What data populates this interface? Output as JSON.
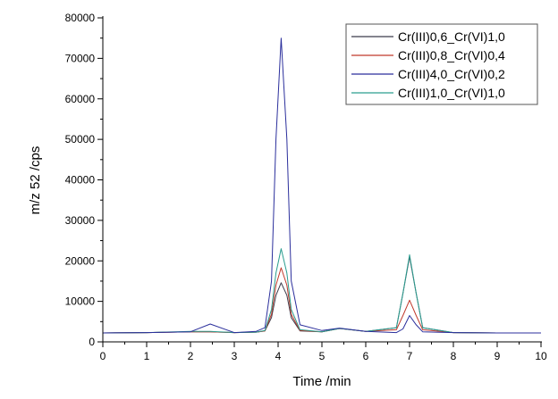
{
  "chart_data": {
    "type": "line",
    "title": "",
    "xlabel": "Time /min",
    "ylabel": "m/z 52 /cps",
    "xlim": [
      0,
      10
    ],
    "ylim": [
      0,
      82000
    ],
    "xticks": [
      "0",
      "1",
      "2",
      "3",
      "4",
      "5",
      "6",
      "7",
      "8",
      "9",
      "10"
    ],
    "yticks": [
      "0",
      "10000",
      "20000",
      "30000",
      "40000",
      "50000",
      "60000",
      "70000",
      "80000"
    ],
    "grid": false,
    "legend_position": "top-right",
    "x": [
      0,
      1,
      2,
      2.45,
      3,
      3.5,
      3.7,
      3.85,
      3.95,
      4.07,
      4.2,
      4.3,
      4.5,
      5,
      5.4,
      6,
      6.7,
      6.85,
      7.0,
      7.15,
      7.3,
      8,
      9,
      10
    ],
    "series": [
      {
        "name": "Cr(III)0,6_Cr(VI)1,0",
        "color": "#3a3a4a",
        "values": [
          2200,
          2300,
          2500,
          2500,
          2300,
          2400,
          2700,
          6000,
          11500,
          14600,
          11500,
          6000,
          2700,
          2500,
          3300,
          2600,
          3500,
          12000,
          21000,
          12000,
          3500,
          2300,
          2200,
          2200
        ]
      },
      {
        "name": "Cr(III)0,8_Cr(VI)0,4",
        "color": "#c0392b",
        "values": [
          2200,
          2300,
          2500,
          2500,
          2300,
          2400,
          2700,
          6800,
          14000,
          18300,
          14000,
          6800,
          2800,
          2500,
          3300,
          2600,
          3000,
          6500,
          10300,
          6500,
          3000,
          2300,
          2200,
          2200
        ]
      },
      {
        "name": "Cr(III)4,0_Cr(VI)0,2",
        "color": "#2b2f9c",
        "values": [
          2200,
          2300,
          2500,
          4400,
          2300,
          2600,
          3500,
          15000,
          50000,
          75000,
          50000,
          15000,
          4200,
          2800,
          3400,
          2600,
          2300,
          3200,
          6500,
          4200,
          2500,
          2300,
          2200,
          2200
        ]
      },
      {
        "name": "Cr(III)1,0_Cr(VI)1,0",
        "color": "#2a9d8f",
        "values": [
          2200,
          2300,
          2600,
          2600,
          2300,
          2400,
          2800,
          8000,
          17000,
          23000,
          17000,
          8000,
          3000,
          2500,
          3300,
          2600,
          3500,
          12000,
          21500,
          12000,
          3500,
          2300,
          2200,
          2200
        ]
      }
    ]
  }
}
